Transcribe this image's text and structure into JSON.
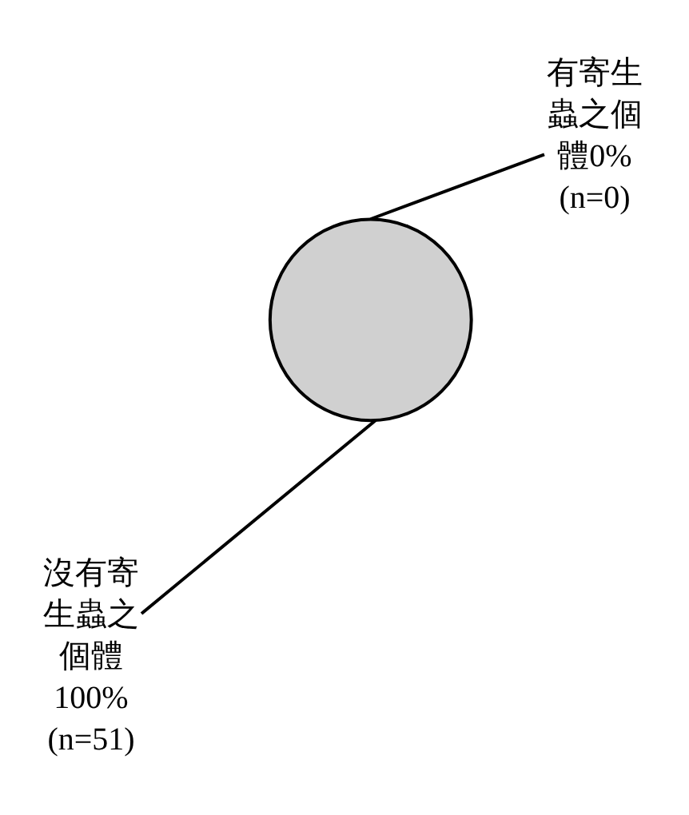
{
  "chart_data": {
    "type": "pie",
    "categories": [
      "有寄生蟲之個體",
      "沒有寄生蟲之個體"
    ],
    "values": [
      0,
      100
    ],
    "value_labels": [
      "0% (n=0)",
      "100% (n=51)"
    ],
    "colors": [
      "#d0d0d0",
      "#d0d0d0"
    ],
    "legend": false
  }
}
